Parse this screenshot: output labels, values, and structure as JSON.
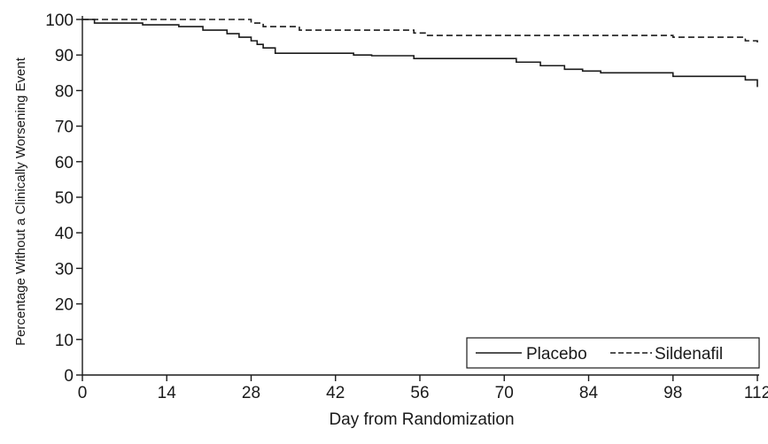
{
  "chart_data": {
    "type": "line",
    "title": "",
    "xlabel": "Day from Randomization",
    "ylabel": "Percentage Without a Clinically Worsening Event",
    "xlim": [
      0,
      112
    ],
    "ylim": [
      0,
      100
    ],
    "xticks": [
      0,
      14,
      28,
      42,
      56,
      70,
      84,
      98,
      112
    ],
    "yticks": [
      0,
      10,
      20,
      30,
      40,
      50,
      60,
      70,
      80,
      90,
      100
    ],
    "grid": false,
    "legend_position": "bottom-right",
    "step": true,
    "series": [
      {
        "name": "Placebo",
        "line_style": "solid",
        "color": "#1a1a1a",
        "points": [
          [
            0,
            100
          ],
          [
            2,
            99
          ],
          [
            10,
            98.5
          ],
          [
            16,
            98
          ],
          [
            20,
            97
          ],
          [
            24,
            96
          ],
          [
            26,
            95
          ],
          [
            28,
            94
          ],
          [
            29,
            93
          ],
          [
            30,
            92
          ],
          [
            32,
            90.5
          ],
          [
            45,
            90
          ],
          [
            48,
            89.8
          ],
          [
            55,
            89
          ],
          [
            72,
            88
          ],
          [
            76,
            87
          ],
          [
            80,
            86
          ],
          [
            83,
            85.5
          ],
          [
            86,
            85
          ],
          [
            98,
            84
          ],
          [
            110,
            83
          ],
          [
            112,
            81
          ]
        ]
      },
      {
        "name": "Sildenafil",
        "line_style": "dashed",
        "color": "#1a1a1a",
        "points": [
          [
            0,
            100
          ],
          [
            28,
            99
          ],
          [
            30,
            98
          ],
          [
            36,
            97
          ],
          [
            55,
            96.2
          ],
          [
            57,
            95.5
          ],
          [
            98,
            95
          ],
          [
            110,
            94
          ],
          [
            112,
            93
          ]
        ]
      }
    ]
  }
}
